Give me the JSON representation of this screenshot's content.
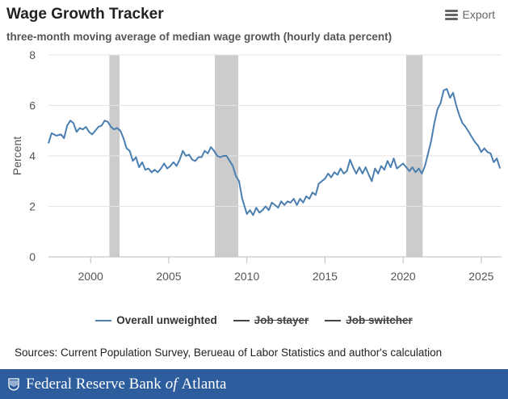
{
  "header": {
    "title": "Wage Growth Tracker",
    "subtitle": "three-month moving average of median wage growth (hourly data percent)",
    "export_label": "Export"
  },
  "legend": [
    {
      "label": "Overall unweighted",
      "visible": true,
      "color": "#4a7fb0"
    },
    {
      "label": "Job stayer",
      "visible": false,
      "color": "#444444"
    },
    {
      "label": "Job switcher",
      "visible": false,
      "color": "#444444"
    }
  ],
  "source_text": "Sources: Current Population Survey, Berueau of Labor Statistics and author's calculation",
  "footer": {
    "prefix": "Federal Reserve Bank",
    "of": "of",
    "suffix": "Atlanta",
    "background": "#2d5d9c"
  },
  "chart_data": {
    "type": "line",
    "ylabel": "Percent",
    "ylim": [
      0,
      8
    ],
    "yticks": [
      0,
      2,
      4,
      6,
      8
    ],
    "xlim": [
      1997.3,
      2026.3
    ],
    "xticks": [
      2000,
      2005,
      2010,
      2015,
      2020,
      2025
    ],
    "grid": true,
    "legend_position": "bottom",
    "recession_color": "#cccccc",
    "recessions": [
      [
        2001.2,
        2001.85
      ],
      [
        2007.95,
        2009.45
      ],
      [
        2020.2,
        2021.25
      ]
    ],
    "series": [
      {
        "name": "Overall unweighted",
        "color": "#4a7fb0",
        "points": [
          [
            1997.3,
            4.5
          ],
          [
            1997.5,
            4.9
          ],
          [
            1997.8,
            4.8
          ],
          [
            1998.1,
            4.85
          ],
          [
            1998.3,
            4.7
          ],
          [
            1998.5,
            5.2
          ],
          [
            1998.7,
            5.4
          ],
          [
            1998.9,
            5.3
          ],
          [
            1999.1,
            4.95
          ],
          [
            1999.3,
            5.1
          ],
          [
            1999.5,
            5.05
          ],
          [
            1999.7,
            5.15
          ],
          [
            1999.9,
            4.95
          ],
          [
            2000.1,
            4.85
          ],
          [
            2000.3,
            5.0
          ],
          [
            2000.5,
            5.15
          ],
          [
            2000.7,
            5.2
          ],
          [
            2000.9,
            5.4
          ],
          [
            2001.1,
            5.35
          ],
          [
            2001.3,
            5.15
          ],
          [
            2001.5,
            5.05
          ],
          [
            2001.7,
            5.1
          ],
          [
            2001.9,
            5.0
          ],
          [
            2002.1,
            4.7
          ],
          [
            2002.3,
            4.3
          ],
          [
            2002.5,
            4.2
          ],
          [
            2002.7,
            3.8
          ],
          [
            2002.9,
            3.95
          ],
          [
            2003.1,
            3.55
          ],
          [
            2003.3,
            3.75
          ],
          [
            2003.5,
            3.45
          ],
          [
            2003.7,
            3.5
          ],
          [
            2003.9,
            3.35
          ],
          [
            2004.1,
            3.45
          ],
          [
            2004.3,
            3.35
          ],
          [
            2004.5,
            3.5
          ],
          [
            2004.7,
            3.7
          ],
          [
            2004.9,
            3.5
          ],
          [
            2005.1,
            3.6
          ],
          [
            2005.3,
            3.75
          ],
          [
            2005.5,
            3.6
          ],
          [
            2005.7,
            3.85
          ],
          [
            2005.9,
            4.2
          ],
          [
            2006.1,
            4.0
          ],
          [
            2006.3,
            4.05
          ],
          [
            2006.5,
            3.85
          ],
          [
            2006.7,
            3.8
          ],
          [
            2006.9,
            3.95
          ],
          [
            2007.1,
            3.95
          ],
          [
            2007.3,
            4.2
          ],
          [
            2007.5,
            4.1
          ],
          [
            2007.7,
            4.35
          ],
          [
            2007.9,
            4.2
          ],
          [
            2008.1,
            4.0
          ],
          [
            2008.3,
            3.95
          ],
          [
            2008.5,
            4.0
          ],
          [
            2008.7,
            4.0
          ],
          [
            2008.9,
            3.8
          ],
          [
            2009.1,
            3.6
          ],
          [
            2009.3,
            3.2
          ],
          [
            2009.5,
            3.0
          ],
          [
            2009.7,
            2.3
          ],
          [
            2009.85,
            2.0
          ],
          [
            2010.0,
            1.7
          ],
          [
            2010.2,
            1.85
          ],
          [
            2010.4,
            1.65
          ],
          [
            2010.6,
            1.95
          ],
          [
            2010.8,
            1.75
          ],
          [
            2011.0,
            1.85
          ],
          [
            2011.2,
            2.0
          ],
          [
            2011.4,
            1.85
          ],
          [
            2011.6,
            2.15
          ],
          [
            2011.8,
            2.05
          ],
          [
            2012.0,
            1.95
          ],
          [
            2012.2,
            2.2
          ],
          [
            2012.4,
            2.05
          ],
          [
            2012.6,
            2.2
          ],
          [
            2012.8,
            2.15
          ],
          [
            2013.0,
            2.3
          ],
          [
            2013.2,
            2.05
          ],
          [
            2013.4,
            2.3
          ],
          [
            2013.6,
            2.15
          ],
          [
            2013.8,
            2.4
          ],
          [
            2014.0,
            2.3
          ],
          [
            2014.2,
            2.55
          ],
          [
            2014.4,
            2.45
          ],
          [
            2014.6,
            2.9
          ],
          [
            2014.8,
            3.0
          ],
          [
            2015.0,
            3.1
          ],
          [
            2015.2,
            3.3
          ],
          [
            2015.4,
            3.15
          ],
          [
            2015.6,
            3.35
          ],
          [
            2015.8,
            3.25
          ],
          [
            2016.0,
            3.5
          ],
          [
            2016.2,
            3.3
          ],
          [
            2016.4,
            3.4
          ],
          [
            2016.6,
            3.85
          ],
          [
            2016.8,
            3.55
          ],
          [
            2017.0,
            3.3
          ],
          [
            2017.2,
            3.55
          ],
          [
            2017.4,
            3.3
          ],
          [
            2017.6,
            3.55
          ],
          [
            2017.8,
            3.25
          ],
          [
            2018.0,
            3.0
          ],
          [
            2018.2,
            3.5
          ],
          [
            2018.4,
            3.3
          ],
          [
            2018.6,
            3.6
          ],
          [
            2018.8,
            3.45
          ],
          [
            2019.0,
            3.8
          ],
          [
            2019.2,
            3.55
          ],
          [
            2019.4,
            3.9
          ],
          [
            2019.6,
            3.5
          ],
          [
            2019.8,
            3.6
          ],
          [
            2020.0,
            3.7
          ],
          [
            2020.2,
            3.55
          ],
          [
            2020.4,
            3.4
          ],
          [
            2020.6,
            3.55
          ],
          [
            2020.8,
            3.35
          ],
          [
            2021.0,
            3.5
          ],
          [
            2021.2,
            3.3
          ],
          [
            2021.4,
            3.6
          ],
          [
            2021.6,
            4.1
          ],
          [
            2021.8,
            4.6
          ],
          [
            2022.0,
            5.3
          ],
          [
            2022.2,
            5.85
          ],
          [
            2022.4,
            6.1
          ],
          [
            2022.6,
            6.6
          ],
          [
            2022.8,
            6.65
          ],
          [
            2023.0,
            6.3
          ],
          [
            2023.2,
            6.5
          ],
          [
            2023.4,
            6.0
          ],
          [
            2023.6,
            5.6
          ],
          [
            2023.8,
            5.3
          ],
          [
            2024.0,
            5.15
          ],
          [
            2024.2,
            4.95
          ],
          [
            2024.4,
            4.75
          ],
          [
            2024.6,
            4.55
          ],
          [
            2024.8,
            4.4
          ],
          [
            2025.0,
            4.15
          ],
          [
            2025.2,
            4.3
          ],
          [
            2025.4,
            4.15
          ],
          [
            2025.6,
            4.1
          ],
          [
            2025.8,
            3.75
          ],
          [
            2026.0,
            3.9
          ],
          [
            2026.2,
            3.5
          ]
        ]
      }
    ]
  }
}
